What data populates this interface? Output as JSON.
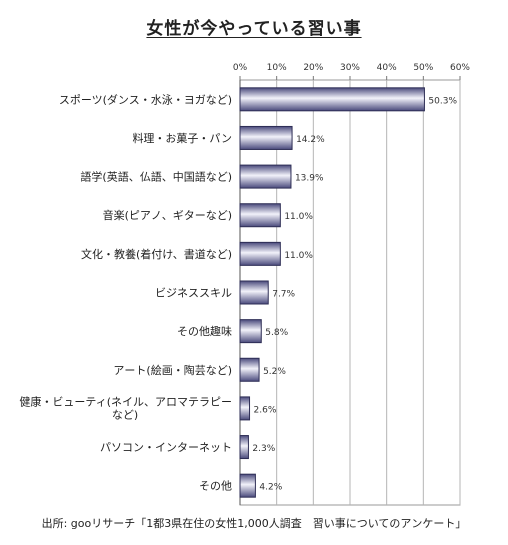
{
  "chart_data": {
    "type": "bar",
    "orientation": "horizontal",
    "title": "女性が今やっている習い事",
    "categories": [
      "スポーツ(ダンス・水泳・ヨガなど)",
      "料理・お菓子・パン",
      "語学(英語、仏語、中国語など)",
      "音楽(ピアノ、ギターなど)",
      "文化・教養(着付け、書道など)",
      "ビジネススキル",
      "その他趣味",
      "アート(絵画・陶芸など)",
      "健康・ビューティ(ネイル、アロマテラピーなど)",
      "パソコン・インターネット",
      "その他"
    ],
    "category_lines": [
      [
        "スポーツ(ダンス・水泳・ヨガなど)"
      ],
      [
        "料理・お菓子・パン"
      ],
      [
        "語学(英語、仏語、中国語など)"
      ],
      [
        "音楽(ピアノ、ギターなど)"
      ],
      [
        "文化・教養(着付け、書道など)"
      ],
      [
        "ビジネススキル"
      ],
      [
        "その他趣味"
      ],
      [
        "アート(絵画・陶芸など)"
      ],
      [
        "健康・ビューティ(ネイル、アロマテラピー",
        "など)"
      ],
      [
        "パソコン・インターネット"
      ],
      [
        "その他"
      ]
    ],
    "values": [
      50.3,
      14.2,
      13.9,
      11.0,
      11.0,
      7.7,
      5.8,
      5.2,
      2.6,
      2.3,
      4.2
    ],
    "value_labels": [
      "50.3%",
      "14.2%",
      "13.9%",
      "11.0%",
      "11.0%",
      "7.7%",
      "5.8%",
      "5.2%",
      "2.6%",
      "2.3%",
      "4.2%"
    ],
    "xlim": [
      0,
      60
    ],
    "xticks": [
      0,
      10,
      20,
      30,
      40,
      50,
      60
    ],
    "xtick_labels": [
      "0%",
      "10%",
      "20%",
      "30%",
      "40%",
      "50%",
      "60%"
    ],
    "grid": true,
    "bar_color": "#4a4a7c",
    "bar_highlight": "#f2f2fa"
  },
  "source": "出所: gooリサーチ「1都3県在住の女性1,000人調査　習い事についてのアンケート」"
}
